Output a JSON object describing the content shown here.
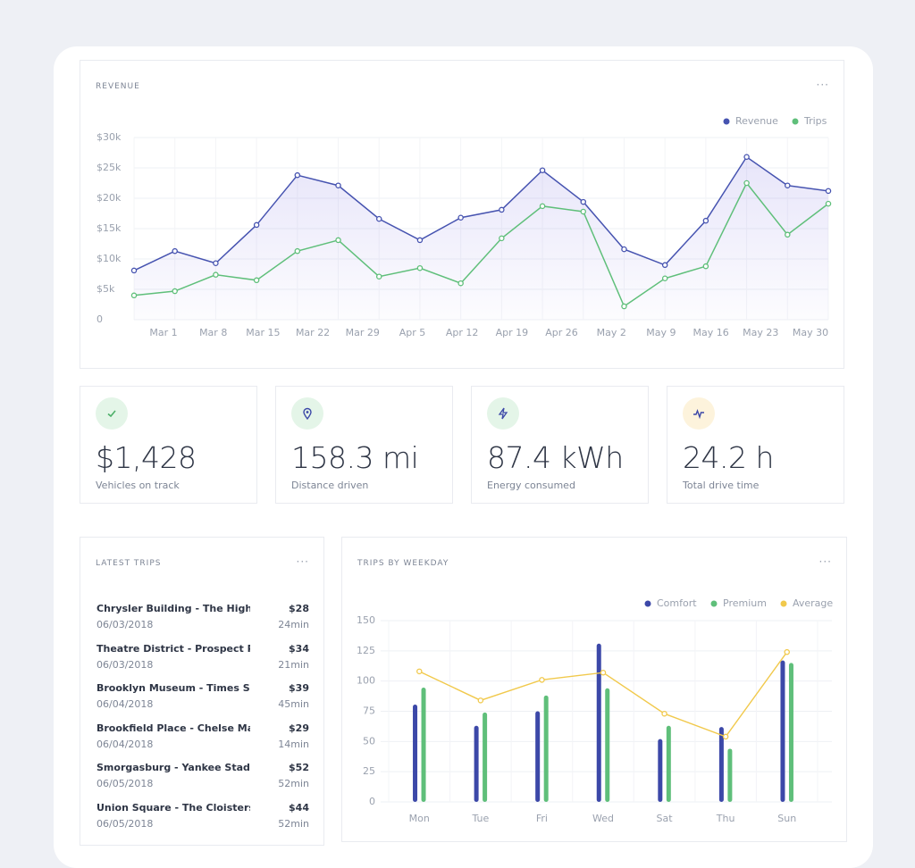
{
  "chart_data": [
    {
      "type": "line",
      "title": "REVENUE",
      "menu": "···",
      "categories": [
        null,
        null,
        null,
        null,
        null,
        null,
        null,
        null,
        null,
        null,
        null,
        null,
        null,
        null,
        null,
        null,
        null,
        null
      ],
      "xticks": [
        "Mar 1",
        "Mar 8",
        "Mar 15",
        "Mar 22",
        "Mar 29",
        "Apr 5",
        "Apr 12",
        "Apr 19",
        "Apr 26",
        "May 2",
        "May 9",
        "May 16",
        "May 23",
        "May 30"
      ],
      "ylim": [
        0,
        30000
      ],
      "yticks": [
        0,
        {
          "value": 5000,
          "label": "$5k"
        },
        {
          "value": 10000,
          "label": "$10k"
        },
        {
          "value": 15000,
          "label": "$15k"
        },
        {
          "value": 20000,
          "label": "$20k"
        },
        {
          "value": 25000,
          "label": "$25k"
        },
        {
          "value": 30000,
          "label": "$30k"
        }
      ],
      "grid": true,
      "legend": "top-right",
      "series": [
        {
          "name": "Revenue",
          "color": "#4653b0",
          "values": [
            8100,
            11300,
            9300,
            15600,
            23800,
            22100,
            16600,
            13100,
            16800,
            18100,
            24600,
            19400,
            11600,
            9000,
            16300,
            26800,
            22100,
            21200
          ]
        },
        {
          "name": "Trips",
          "color": "#5fbf7a",
          "values": [
            4000,
            4700,
            7400,
            6500,
            11300,
            13100,
            7100,
            8500,
            6000,
            13400,
            18700,
            17800,
            2200,
            6800,
            8800,
            22500,
            14000,
            19100
          ]
        }
      ]
    },
    {
      "type": "bar",
      "title": "TRIPS BY WEEKDAY",
      "menu": "···",
      "categories": [
        "Mon",
        "Tue",
        "Fri",
        "Wed",
        "Sat",
        "Thu",
        "Sun"
      ],
      "ylim": [
        0,
        150
      ],
      "yticks": [
        0,
        25,
        50,
        75,
        100,
        125,
        150
      ],
      "grid": true,
      "legend": "top-right",
      "series": [
        {
          "name": "Comfort",
          "color": "#3c48a8",
          "values": [
            80.5,
            63,
            75,
            131,
            52,
            62,
            117
          ]
        },
        {
          "name": "Premium",
          "color": "#5fbf7a",
          "values": [
            94.6,
            74,
            88,
            94,
            63,
            44,
            115
          ]
        },
        {
          "name": "Average",
          "color": "#f1c94c",
          "type": "line",
          "values": [
            108,
            84,
            101,
            107,
            73,
            54,
            124
          ]
        }
      ]
    }
  ],
  "stats": [
    {
      "value": "$1,428",
      "label": "Vehicles on track"
    },
    {
      "value": "158.3 mi",
      "label": "Distance driven"
    },
    {
      "value": "87.4 kWh",
      "label": "Energy consumed"
    },
    {
      "value": "24.2 h",
      "label": "Total drive time"
    }
  ],
  "latest_trips": {
    "title": "LATEST TRIPS",
    "menu": "···",
    "rows": [
      {
        "name": "Chrysler Building - The High Lin",
        "price": "$28",
        "date": "06/03/2018",
        "duration": "24min"
      },
      {
        "name": "Theatre District - Prospect Parl",
        "price": "$34",
        "date": "06/03/2018",
        "duration": "21min"
      },
      {
        "name": "Brooklyn Museum - Times Squa",
        "price": "$39",
        "date": "06/04/2018",
        "duration": "45min"
      },
      {
        "name": "Brookfield Place - Chelse Marke",
        "price": "$29",
        "date": "06/04/2018",
        "duration": "14min"
      },
      {
        "name": "Smorgasburg - Yankee Stadium",
        "price": "$52",
        "date": "06/05/2018",
        "duration": "52min"
      },
      {
        "name": "Union Square - The Cloisters",
        "price": "$44",
        "date": "06/05/2018",
        "duration": "52min"
      }
    ]
  }
}
